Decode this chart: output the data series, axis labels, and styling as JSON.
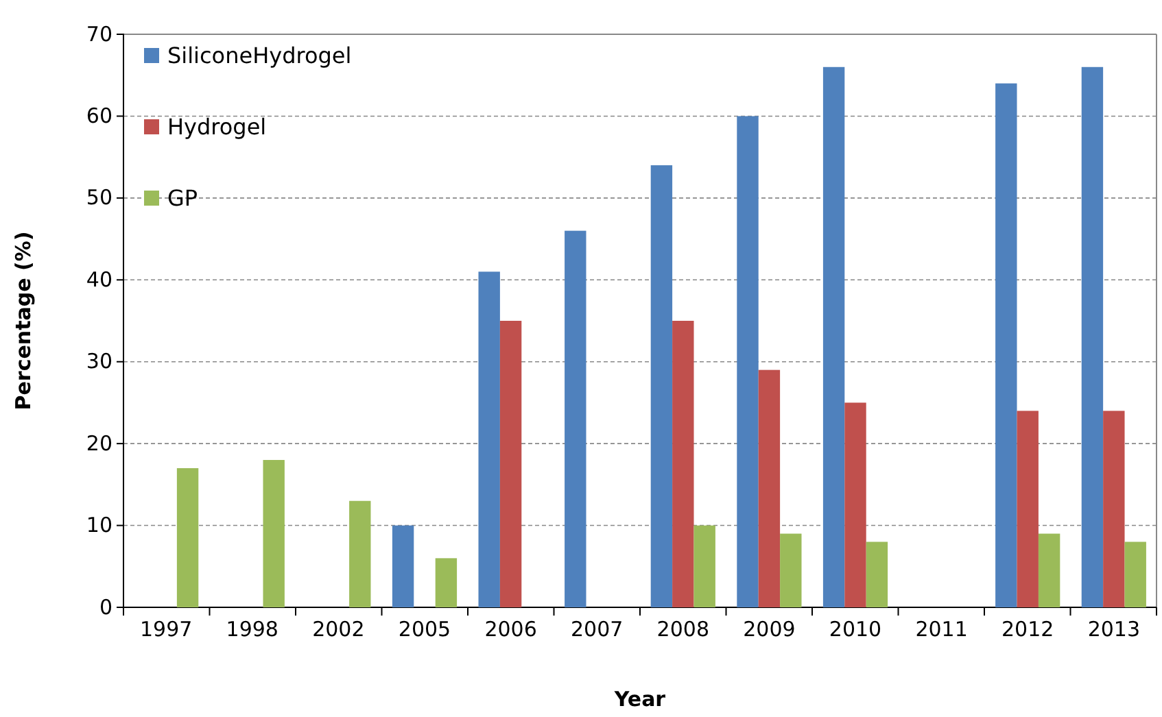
{
  "chart_data": {
    "type": "bar",
    "xlabel": "Year",
    "ylabel": "Percentage (%)",
    "categories": [
      "1997",
      "1998",
      "2002",
      "2005",
      "2006",
      "2007",
      "2008",
      "2009",
      "2010",
      "2011",
      "2012",
      "2013"
    ],
    "series": [
      {
        "name": "SiliconeHydrogel",
        "color": "#4f81bd",
        "values": [
          null,
          null,
          null,
          10,
          41,
          46,
          54,
          60,
          66,
          null,
          64,
          66
        ]
      },
      {
        "name": "Hydrogel",
        "color": "#c0504d",
        "values": [
          null,
          null,
          null,
          null,
          35,
          null,
          35,
          29,
          25,
          null,
          24,
          24
        ]
      },
      {
        "name": "GP",
        "color": "#9bbb59",
        "values": [
          17,
          18,
          13,
          6,
          null,
          null,
          10,
          9,
          8,
          null,
          9,
          8
        ]
      }
    ],
    "ylim": [
      0,
      70
    ],
    "yticks": [
      0,
      10,
      20,
      30,
      40,
      50,
      60,
      70
    ],
    "grid": "y",
    "legend": "top left"
  }
}
